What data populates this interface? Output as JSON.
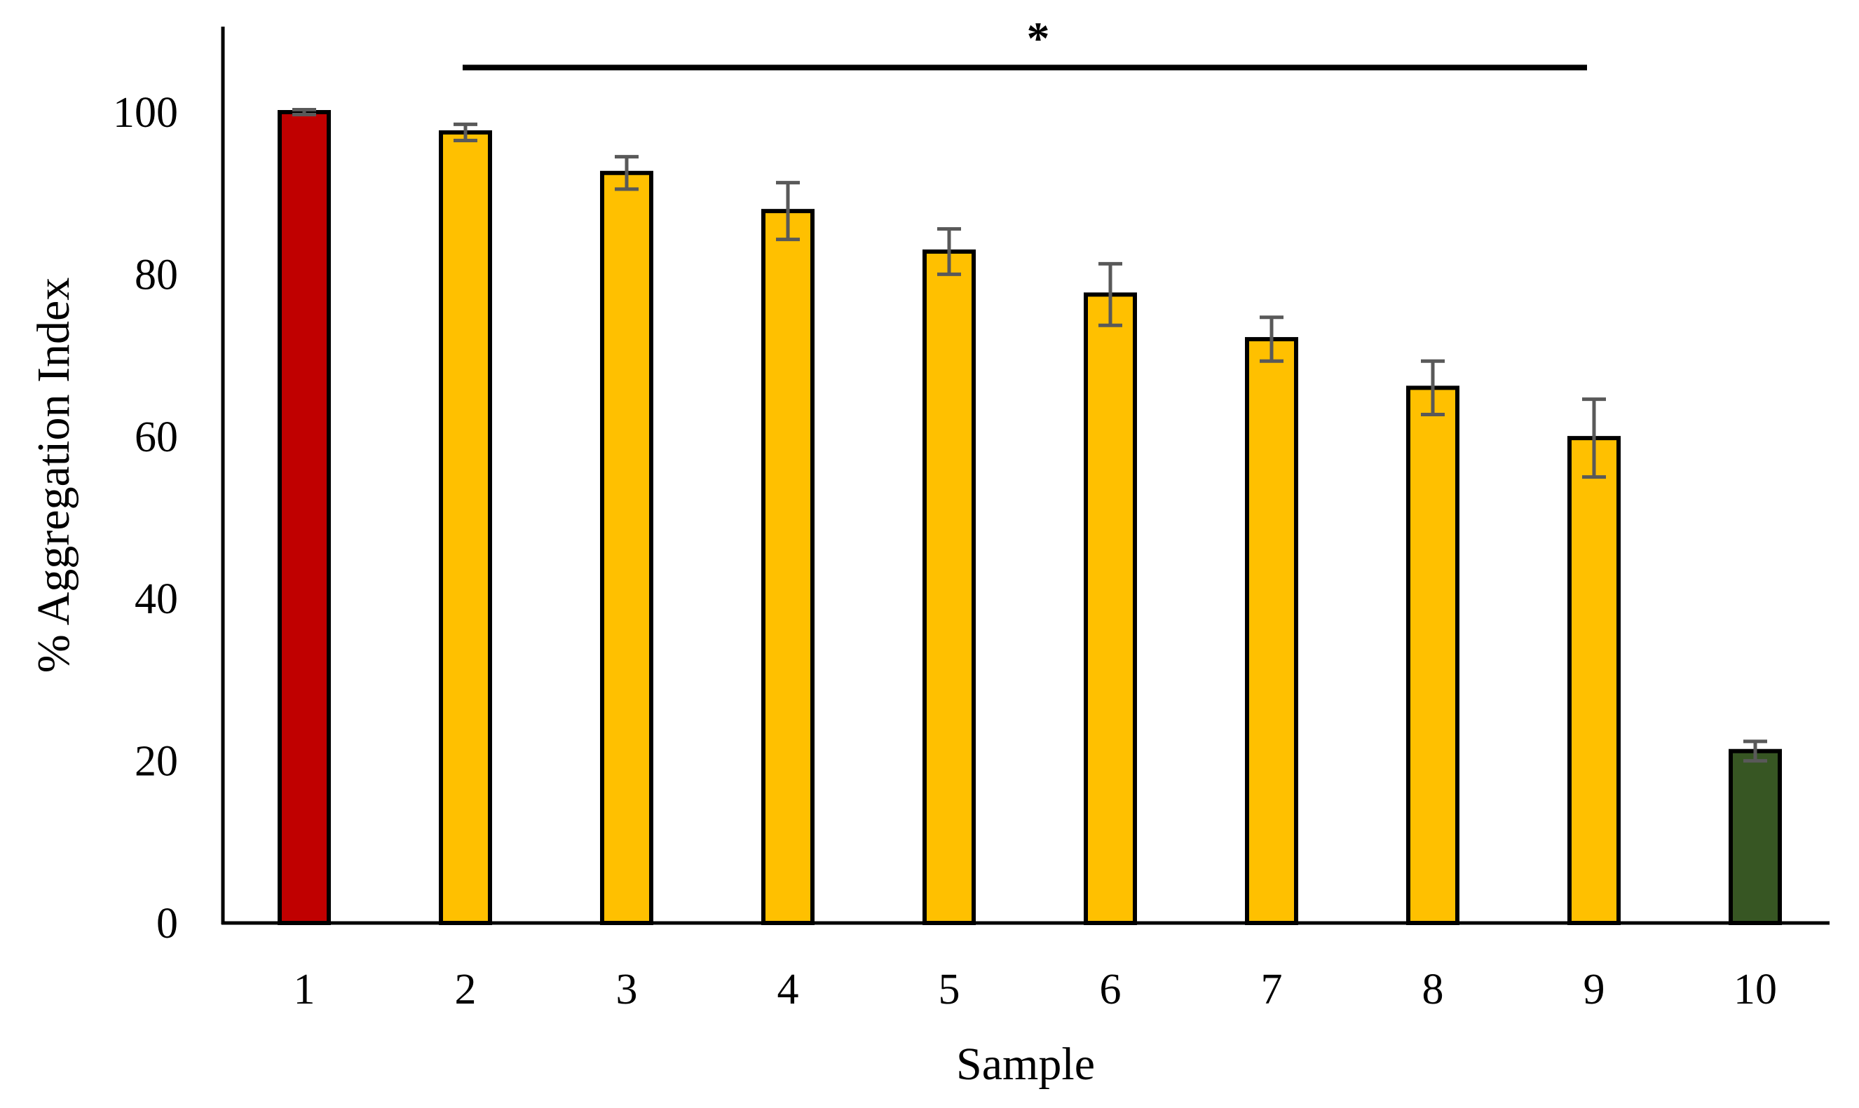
{
  "chart_data": {
    "type": "bar",
    "title": "",
    "xlabel": "Sample",
    "ylabel": "% Aggregation Index",
    "categories": [
      "1",
      "2",
      "3",
      "4",
      "5",
      "6",
      "7",
      "8",
      "9",
      "10"
    ],
    "values": [
      100,
      97.5,
      92.5,
      87.8,
      82.8,
      77.5,
      72.0,
      66.0,
      59.8,
      21.2
    ],
    "error": [
      0.3,
      1.0,
      2.0,
      3.5,
      2.8,
      3.8,
      2.7,
      3.3,
      4.8,
      1.2
    ],
    "bar_colors": [
      "#c00000",
      "#ffc000",
      "#ffc000",
      "#ffc000",
      "#ffc000",
      "#ffc000",
      "#ffc000",
      "#ffc000",
      "#ffc000",
      "#375623"
    ],
    "bar_outline_color": "#000000",
    "error_bar_color": "#595959",
    "ylim": [
      0,
      110
    ],
    "yticks": [
      0,
      20,
      40,
      60,
      80,
      100
    ],
    "grid": false,
    "legend": "none",
    "significance": {
      "symbol": "*",
      "from_category": "2",
      "to_category": "9",
      "y": 105.5
    }
  }
}
